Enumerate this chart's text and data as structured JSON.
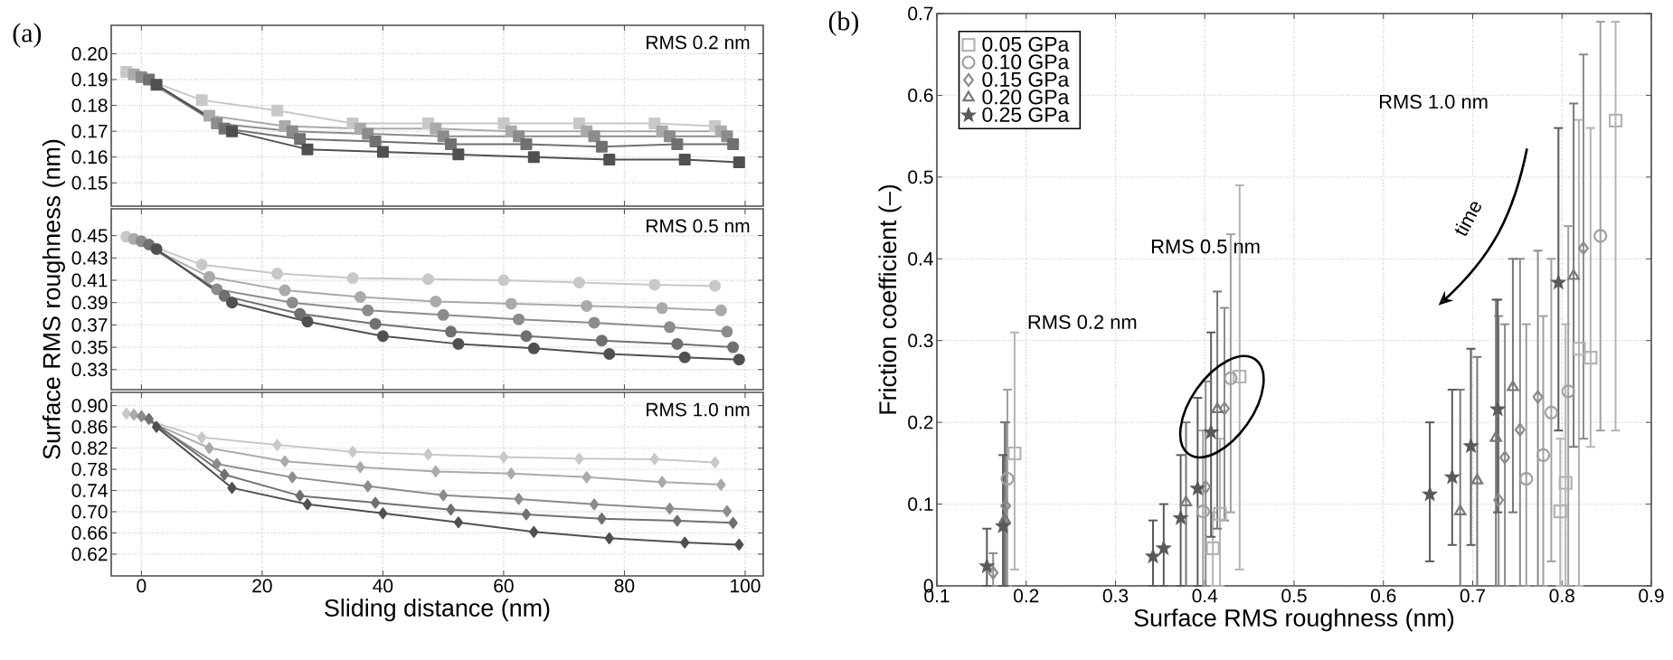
{
  "chart_data": [
    {
      "type": "line",
      "title": "(a)",
      "annotations": [
        "RMS 0.2 nm"
      ],
      "marker": "square",
      "grid": true,
      "tick_labels": "y",
      "xlim": [
        -5,
        103
      ],
      "ylim": [
        0.141,
        0.211
      ],
      "xticks": [
        0,
        20,
        40,
        60,
        80,
        100
      ],
      "yticks": [
        0.15,
        0.16,
        0.17,
        0.18,
        0.19,
        {
          "value": 0.2,
          "label": "0.20"
        }
      ],
      "series": [
        {
          "color": "#c8c8c8",
          "x": [
            -2.5,
            10,
            22.5,
            35,
            47.5,
            60,
            72.5,
            85,
            95
          ],
          "values": [
            0.193,
            0.182,
            0.178,
            0.173,
            0.173,
            0.173,
            0.173,
            0.173,
            0.172
          ]
        },
        {
          "color": "#aaaaaa",
          "x": [
            -1.25,
            11.25,
            23.75,
            36.25,
            48.75,
            61.25,
            73.75,
            86.25,
            96
          ],
          "values": [
            0.192,
            0.176,
            0.172,
            0.171,
            0.171,
            0.17,
            0.17,
            0.17,
            0.17
          ]
        },
        {
          "color": "#8c8c8c",
          "x": [
            0,
            12.5,
            25,
            37.5,
            50,
            62.5,
            75,
            87.5,
            97
          ],
          "values": [
            0.191,
            0.173,
            0.17,
            0.169,
            0.168,
            0.168,
            0.168,
            0.168,
            0.168
          ]
        },
        {
          "color": "#707070",
          "x": [
            1.25,
            13.75,
            26.25,
            38.75,
            51.25,
            63.75,
            76.25,
            88.75,
            98
          ],
          "values": [
            0.19,
            0.171,
            0.167,
            0.166,
            0.165,
            0.165,
            0.164,
            0.165,
            0.165
          ]
        },
        {
          "color": "#505050",
          "x": [
            2.5,
            15,
            27.5,
            40,
            52.5,
            65,
            77.5,
            90,
            99
          ],
          "values": [
            0.188,
            0.17,
            0.163,
            0.162,
            0.161,
            0.16,
            0.159,
            0.159,
            0.158
          ]
        }
      ]
    },
    {
      "type": "line",
      "ylabel": "Surface RMS roughness (nm)",
      "annotations": [
        "RMS 0.5 nm"
      ],
      "marker": "circle",
      "grid": true,
      "tick_labels": "y",
      "xlim": [
        -5,
        103
      ],
      "ylim": [
        0.312,
        0.474
      ],
      "xticks": [
        0,
        20,
        40,
        60,
        80,
        100
      ],
      "yticks": [
        0.33,
        0.35,
        0.37,
        0.39,
        0.41,
        0.43,
        0.45
      ],
      "series": [
        {
          "color": "#c8c8c8",
          "x": [
            -2.5,
            10,
            22.5,
            35,
            47.5,
            60,
            72.5,
            85,
            95
          ],
          "values": [
            0.449,
            0.424,
            0.416,
            0.412,
            0.411,
            0.41,
            0.408,
            0.406,
            0.405
          ]
        },
        {
          "color": "#aaaaaa",
          "x": [
            -1.25,
            11.25,
            23.75,
            36.25,
            48.75,
            61.25,
            73.75,
            86.25,
            96
          ],
          "values": [
            0.447,
            0.413,
            0.401,
            0.395,
            0.391,
            0.389,
            0.387,
            0.385,
            0.383
          ]
        },
        {
          "color": "#8c8c8c",
          "x": [
            0,
            12.5,
            25,
            37.5,
            50,
            62.5,
            75,
            87.5,
            97
          ],
          "values": [
            0.445,
            0.402,
            0.39,
            0.383,
            0.379,
            0.375,
            0.372,
            0.368,
            0.364
          ]
        },
        {
          "color": "#707070",
          "x": [
            1.25,
            13.75,
            26.25,
            38.75,
            51.25,
            63.75,
            76.25,
            88.75,
            98
          ],
          "values": [
            0.442,
            0.396,
            0.38,
            0.371,
            0.364,
            0.36,
            0.356,
            0.353,
            0.35
          ]
        },
        {
          "color": "#505050",
          "x": [
            2.5,
            15,
            27.5,
            40,
            52.5,
            65,
            77.5,
            90,
            99
          ],
          "values": [
            0.438,
            0.39,
            0.373,
            0.36,
            0.353,
            0.349,
            0.344,
            0.341,
            0.339
          ]
        }
      ]
    },
    {
      "type": "line",
      "xlabel": "Sliding distance (nm)",
      "annotations": [
        "RMS 1.0 nm"
      ],
      "marker": "diamond",
      "grid": true,
      "xlim": [
        -5,
        103
      ],
      "ylim": [
        0.579,
        0.925
      ],
      "xticks": [
        0,
        20,
        40,
        60,
        80,
        100
      ],
      "yticks": [
        0.62,
        0.66,
        {
          "value": 0.7,
          "label": "0.70"
        },
        0.74,
        0.78,
        0.82,
        0.86,
        {
          "value": 0.9,
          "label": "0.90"
        }
      ],
      "series": [
        {
          "color": "#c8c8c8",
          "x": [
            -2.5,
            10,
            22.5,
            35,
            47.5,
            60,
            72.5,
            85,
            95
          ],
          "values": [
            0.885,
            0.84,
            0.826,
            0.813,
            0.808,
            0.803,
            0.8,
            0.799,
            0.793
          ]
        },
        {
          "color": "#aaaaaa",
          "x": [
            -1.25,
            11.25,
            23.75,
            36.25,
            48.75,
            61.25,
            73.75,
            86.25,
            96
          ],
          "values": [
            0.883,
            0.82,
            0.795,
            0.784,
            0.776,
            0.772,
            0.765,
            0.756,
            0.751
          ]
        },
        {
          "color": "#8c8c8c",
          "x": [
            0,
            12.5,
            25,
            37.5,
            50,
            62.5,
            75,
            87.5,
            97
          ],
          "values": [
            0.88,
            0.79,
            0.765,
            0.748,
            0.731,
            0.724,
            0.714,
            0.706,
            0.701
          ]
        },
        {
          "color": "#707070",
          "x": [
            1.25,
            13.75,
            26.25,
            38.75,
            51.25,
            63.75,
            76.25,
            88.75,
            98
          ],
          "values": [
            0.875,
            0.77,
            0.73,
            0.717,
            0.704,
            0.695,
            0.687,
            0.683,
            0.679
          ]
        },
        {
          "color": "#505050",
          "x": [
            2.5,
            15,
            27.5,
            40,
            52.5,
            65,
            77.5,
            90,
            99
          ],
          "values": [
            0.86,
            0.745,
            0.714,
            0.697,
            0.68,
            0.662,
            0.65,
            0.642,
            0.638
          ]
        }
      ]
    },
    {
      "type": "scatter",
      "title": "(b)",
      "xlabel": "Surface RMS roughness (nm)",
      "ylabel": "Friction coefficient (–)",
      "grid": true,
      "legend": "top left",
      "xlim": [
        0.1,
        0.9
      ],
      "ylim": [
        0,
        0.7
      ],
      "xticks": [
        0.1,
        0.2,
        0.3,
        0.4,
        0.5,
        0.6,
        0.7,
        0.8,
        0.9
      ],
      "yticks": [
        0,
        0.1,
        0.2,
        0.3,
        0.4,
        0.5,
        0.6,
        0.7
      ],
      "annotations": [
        "RMS 0.2 nm",
        "RMS 0.5 nm",
        "RMS 1.0 nm",
        "time"
      ],
      "series": [
        {
          "name": "0.05 GPa",
          "marker": "square",
          "color": "#b4b4b4",
          "x": [
            0.187,
            0.417,
            0.409,
            0.439,
            0.804,
            0.798,
            0.819,
            0.832,
            0.86
          ],
          "values": [
            0.162,
            0.088,
            0.046,
            0.256,
            0.126,
            0.091,
            0.29,
            0.279,
            0.569
          ],
          "errors": [
            [
              0.02,
              0.31
            ],
            [
              0.0,
              0.18
            ],
            [
              0.0,
              0.09
            ],
            [
              0.02,
              0.49
            ],
            [
              0.0,
              0.32
            ],
            [
              0.0,
              0.18
            ],
            [
              0.0,
              0.57
            ],
            [
              0.17,
              0.56
            ],
            [
              0.19,
              0.69
            ]
          ]
        },
        {
          "name": "0.10 GPa",
          "marker": "circle",
          "color": "#a0a0a0",
          "x": [
            0.179,
            0.398,
            0.429,
            0.76,
            0.779,
            0.788,
            0.807,
            0.843
          ],
          "values": [
            0.131,
            0.091,
            0.254,
            0.131,
            0.16,
            0.212,
            0.238,
            0.428
          ],
          "errors": [
            [
              0.0,
              0.24
            ],
            [
              0.0,
              0.19
            ],
            [
              0.09,
              0.43
            ],
            [
              0.0,
              0.32
            ],
            [
              0.0,
              0.33
            ],
            [
              0.03,
              0.4
            ],
            [
              0.0,
              0.44
            ],
            [
              0.19,
              0.69
            ]
          ]
        },
        {
          "name": "0.15 GPa",
          "marker": "diamond",
          "color": "#8c8c8c",
          "x": [
            0.163,
            0.177,
            0.401,
            0.422,
            0.729,
            0.736,
            0.753,
            0.773,
            0.824
          ],
          "values": [
            0.016,
            0.098,
            0.121,
            0.217,
            0.105,
            0.157,
            0.191,
            0.231,
            0.413
          ],
          "errors": [
            [
              0.0,
              0.04
            ],
            [
              0.0,
              0.2
            ],
            [
              0.0,
              0.25
            ],
            [
              0.08,
              0.34
            ],
            [
              0.0,
              0.33
            ],
            [
              0.0,
              0.32
            ],
            [
              0.0,
              0.4
            ],
            [
              0.0,
              0.41
            ],
            [
              0.18,
              0.65
            ]
          ]
        },
        {
          "name": "0.20 GPa",
          "marker": "triangle",
          "color": "#787878",
          "x": [
            0.176,
            0.379,
            0.414,
            0.686,
            0.705,
            0.726,
            0.745,
            0.813
          ],
          "values": [
            0.081,
            0.102,
            0.216,
            0.091,
            0.129,
            0.181,
            0.243,
            0.379
          ],
          "errors": [
            [
              0.0,
              0.2
            ],
            [
              0.0,
              0.2
            ],
            [
              0.07,
              0.36
            ],
            [
              0.0,
              0.24
            ],
            [
              0.0,
              0.28
            ],
            [
              0.0,
              0.35
            ],
            [
              0.09,
              0.4
            ],
            [
              0.17,
              0.59
            ]
          ]
        },
        {
          "name": "0.25 GPa",
          "marker": "star",
          "color": "#5a5a5a",
          "x": [
            0.156,
            0.174,
            0.342,
            0.354,
            0.373,
            0.392,
            0.407,
            0.652,
            0.677,
            0.698,
            0.728,
            0.796
          ],
          "values": [
            0.024,
            0.073,
            0.036,
            0.046,
            0.083,
            0.119,
            0.188,
            0.112,
            0.133,
            0.171,
            0.216,
            0.371
          ],
          "errors": [
            [
              0.0,
              0.07
            ],
            [
              0.0,
              0.16
            ],
            [
              0.0,
              0.08
            ],
            [
              0.0,
              0.1
            ],
            [
              0.0,
              0.16
            ],
            [
              0.0,
              0.23
            ],
            [
              0.06,
              0.31
            ],
            [
              0.03,
              0.2
            ],
            [
              0.05,
              0.24
            ],
            [
              0.05,
              0.29
            ],
            [
              0.09,
              0.35
            ],
            [
              0.19,
              0.56
            ]
          ]
        }
      ]
    }
  ]
}
